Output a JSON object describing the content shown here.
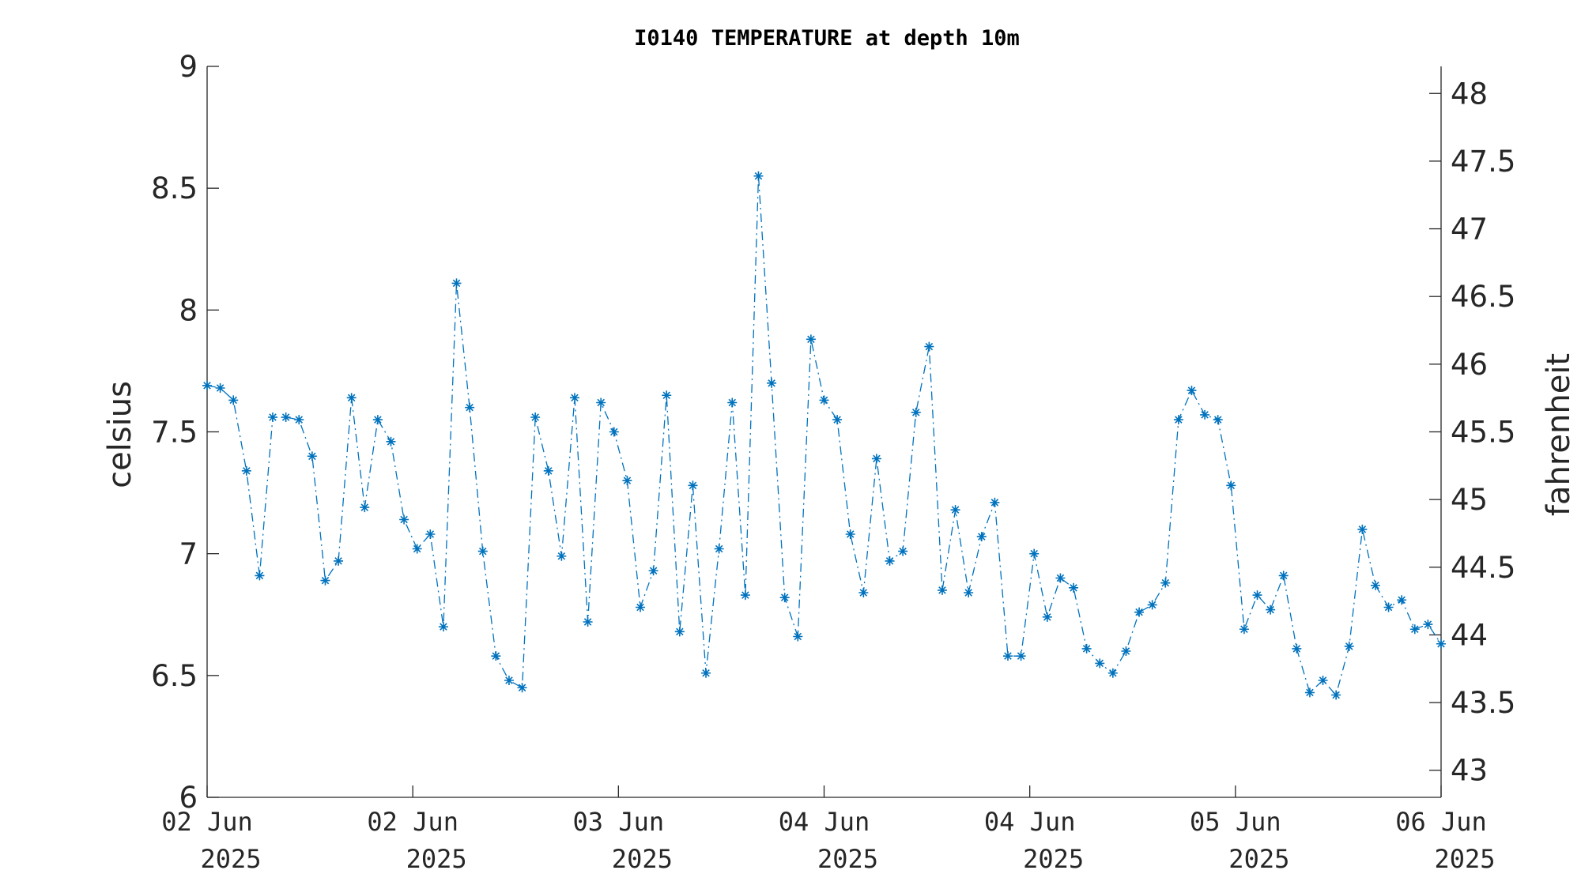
{
  "chart_data": {
    "type": "line",
    "title": "I0140 TEMPERATURE at depth 10m",
    "ylabel": "celsius",
    "y2label": "fahrenheit",
    "xlabel": "",
    "ylim": [
      6,
      9
    ],
    "y2lim": [
      42.8,
      48.2
    ],
    "y_ticks": [
      "6",
      "6.5",
      "7",
      "7.5",
      "8",
      "8.5",
      "9"
    ],
    "y2_ticks": [
      "43",
      "43.5",
      "44",
      "44.5",
      "45",
      "45.5",
      "46",
      "46.5",
      "47",
      "47.5",
      "48"
    ],
    "x_ticks": [
      {
        "day": "02 Jun",
        "year": "2025"
      },
      {
        "day": "02 Jun",
        "year": "2025"
      },
      {
        "day": "03 Jun",
        "year": "2025"
      },
      {
        "day": "04 Jun",
        "year": "2025"
      },
      {
        "day": "04 Jun",
        "year": "2025"
      },
      {
        "day": "05 Jun",
        "year": "2025"
      },
      {
        "day": "06 Jun",
        "year": "2025"
      }
    ],
    "grid": false,
    "line_style": "dash-dot",
    "marker": "asterisk",
    "color": "#0072BD",
    "series": [
      {
        "values": [
          7.69,
          7.68,
          7.63,
          7.34,
          6.91,
          7.56,
          7.56,
          7.55,
          7.4,
          6.89,
          6.97,
          7.64,
          7.19,
          7.55,
          7.46,
          7.14,
          7.02,
          7.08,
          6.7,
          8.11,
          7.6,
          7.01,
          6.58,
          6.48,
          6.45,
          7.56,
          7.34,
          6.99,
          7.64,
          6.72,
          7.62,
          7.5,
          7.3,
          6.78,
          6.93,
          7.65,
          6.68,
          7.28,
          6.51,
          7.02,
          7.62,
          6.83,
          8.55,
          7.7,
          6.82,
          6.66,
          7.88,
          7.63,
          7.55,
          7.08,
          6.84,
          7.39,
          6.97,
          7.01,
          7.58,
          7.85,
          6.85,
          7.18,
          6.84,
          7.07,
          7.21,
          6.58,
          6.58,
          7.0,
          6.74,
          6.9,
          6.86,
          6.61,
          6.55,
          6.51,
          6.6,
          6.76,
          6.79,
          6.88,
          7.55,
          7.67,
          7.57,
          7.55,
          7.28,
          6.69,
          6.83,
          6.77,
          6.91,
          6.61,
          6.43,
          6.48,
          6.42,
          6.62,
          7.1,
          6.87,
          6.78,
          6.81,
          6.69,
          6.71,
          6.63
        ]
      }
    ]
  }
}
